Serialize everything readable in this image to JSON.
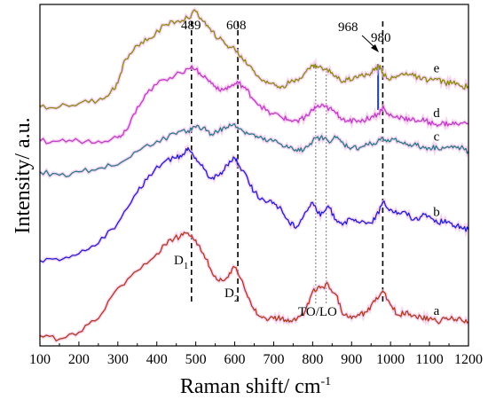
{
  "chart_data": {
    "type": "line",
    "xlabel": "Raman shift/ cm",
    "xlabel_sup": "-1",
    "ylabel": "Intensity/ a.u.",
    "xlim": [
      100,
      1200
    ],
    "ylim": [
      0,
      100
    ],
    "xticks": [
      100,
      200,
      300,
      400,
      500,
      600,
      700,
      800,
      900,
      1000,
      1100,
      1200
    ],
    "grid": false,
    "annotations": {
      "peak_489": "489",
      "peak_608": "608",
      "peak_968": "968",
      "peak_980": "980",
      "d1_main": "D",
      "d1_sub": "1",
      "d2_main": "D",
      "d2_sub": "2",
      "to_lo": "TO/LO"
    },
    "vlines_dashed": [
      489,
      608,
      980
    ],
    "vlines_dotted": [
      808,
      835
    ],
    "vline_blue": 968,
    "series": [
      {
        "name": "a",
        "color": "#b03a1e",
        "x": [
          100,
          150,
          200,
          250,
          300,
          350,
          400,
          430,
          460,
          480,
          500,
          520,
          540,
          560,
          580,
          600,
          620,
          640,
          660,
          680,
          700,
          720,
          740,
          760,
          780,
          800,
          820,
          840,
          860,
          880,
          900,
          920,
          940,
          960,
          980,
          1000,
          1020,
          1040,
          1060,
          1080,
          1100,
          1120,
          1140,
          1160,
          1180,
          1200
        ],
        "y": [
          3,
          2,
          4,
          8,
          17,
          22,
          27,
          31,
          32,
          33,
          31,
          27,
          22,
          19,
          20,
          23,
          19,
          13,
          9,
          8,
          8,
          8,
          7,
          8,
          10,
          16,
          17,
          18,
          15,
          9,
          8,
          9,
          10,
          13,
          16,
          12,
          9,
          10,
          9,
          8,
          8,
          7,
          8,
          8,
          8,
          7
        ]
      },
      {
        "name": "b",
        "color": "#1e1ed2",
        "x": [
          100,
          150,
          200,
          250,
          300,
          350,
          380,
          420,
          450,
          470,
          480,
          500,
          520,
          540,
          560,
          580,
          600,
          610,
          630,
          650,
          680,
          700,
          720,
          740,
          760,
          780,
          800,
          820,
          840,
          860,
          880,
          900,
          920,
          940,
          960,
          980,
          1000,
          1020,
          1040,
          1060,
          1080,
          1100,
          1120,
          1140,
          1160,
          1180,
          1200
        ],
        "y": [
          25,
          25,
          27,
          30,
          36,
          45,
          50,
          54,
          55,
          56,
          58,
          55,
          52,
          49,
          50,
          53,
          55,
          53,
          50,
          45,
          42,
          42,
          40,
          36,
          35,
          39,
          42,
          38,
          41,
          37,
          36,
          37,
          36,
          36,
          37,
          42,
          40,
          39,
          39,
          37,
          38,
          38,
          36,
          37,
          35,
          35,
          34
        ]
      },
      {
        "name": "c",
        "color": "#2a7a8a",
        "x": [
          100,
          150,
          200,
          250,
          300,
          350,
          400,
          450,
          480,
          500,
          520,
          540,
          560,
          580,
          600,
          620,
          640,
          660,
          680,
          700,
          720,
          740,
          760,
          780,
          800,
          820,
          840,
          860,
          880,
          900,
          920,
          940,
          960,
          980,
          1000,
          1020,
          1040,
          1060,
          1080,
          1100,
          1120,
          1140,
          1160,
          1180,
          1200
        ],
        "y": [
          51,
          50,
          51,
          52,
          53,
          57,
          60,
          62,
          63,
          64,
          64,
          62,
          63,
          64,
          65,
          63,
          62,
          61,
          60,
          60,
          59,
          58,
          57,
          58,
          60,
          61,
          60,
          61,
          59,
          58,
          58,
          59,
          59,
          61,
          60,
          60,
          59,
          59,
          58,
          58,
          58,
          58,
          58,
          58,
          57
        ]
      },
      {
        "name": "d",
        "color": "#c03ac8",
        "x": [
          100,
          150,
          200,
          250,
          300,
          320,
          350,
          380,
          420,
          460,
          490,
          510,
          530,
          550,
          570,
          590,
          610,
          630,
          650,
          680,
          700,
          720,
          740,
          760,
          780,
          800,
          810,
          830,
          850,
          870,
          890,
          910,
          930,
          950,
          970,
          980,
          990,
          1010,
          1030,
          1050,
          1070,
          1090,
          1110,
          1130,
          1150,
          1170,
          1200
        ],
        "y": [
          60,
          60,
          60,
          60,
          61,
          63,
          70,
          75,
          78,
          80,
          82,
          80,
          78,
          76,
          75,
          76,
          77,
          75,
          72,
          69,
          68,
          67,
          66,
          66,
          67,
          69,
          70,
          70,
          69,
          67,
          66,
          66,
          66,
          67,
          68,
          70,
          68,
          67,
          67,
          66,
          66,
          66,
          65,
          65,
          65,
          65,
          65
        ]
      },
      {
        "name": "e",
        "color": "#8a8a12",
        "x": [
          100,
          150,
          200,
          250,
          280,
          300,
          320,
          350,
          380,
          420,
          450,
          480,
          500,
          520,
          540,
          560,
          580,
          600,
          620,
          640,
          660,
          680,
          700,
          720,
          740,
          760,
          780,
          800,
          810,
          830,
          850,
          870,
          890,
          910,
          930,
          950,
          960,
          970,
          980,
          1000,
          1020,
          1040,
          1060,
          1080,
          1100,
          1120,
          1140,
          1160,
          1180,
          1200
        ],
        "y": [
          70,
          70,
          71,
          72,
          74,
          77,
          84,
          88,
          90,
          94,
          95,
          96,
          98,
          95,
          92,
          90,
          88,
          87,
          84,
          82,
          79,
          77,
          77,
          76,
          77,
          78,
          80,
          82,
          82,
          81,
          80,
          78,
          78,
          79,
          79,
          80,
          81,
          82,
          80,
          78,
          79,
          80,
          79,
          78,
          78,
          78,
          77,
          77,
          76,
          76
        ]
      }
    ]
  }
}
